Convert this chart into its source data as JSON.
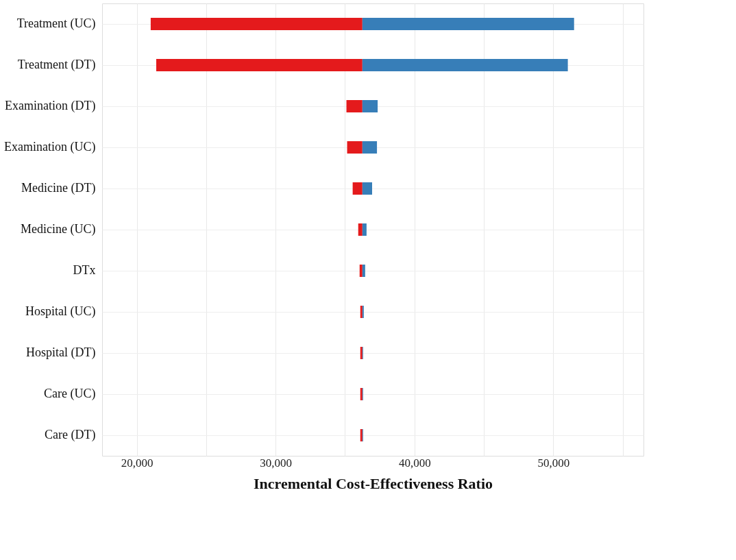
{
  "chart_data": {
    "type": "bar",
    "orientation": "horizontal",
    "xlabel": "Incremental Cost-Effectiveness Ratio",
    "categories": [
      "Treatment (UC)",
      "Treatment (DT)",
      "Examination (DT)",
      "Examination (UC)",
      "Medicine (DT)",
      "Medicine (UC)",
      "DTx",
      "Hospital (UC)",
      "Hospital (DT)",
      "Care (UC)",
      "Care (DT)"
    ],
    "series": [
      {
        "color": "#e41a1c",
        "base": [
          21000,
          21400,
          35100,
          35150,
          35550,
          35950,
          36050,
          36100,
          36100,
          36100,
          36100
        ],
        "values": [
          15250,
          14850,
          1150,
          1100,
          700,
          300,
          200,
          150,
          150,
          150,
          150
        ]
      },
      {
        "color": "#377eb8",
        "base": [
          36250,
          36250,
          36250,
          36250,
          36250,
          36250,
          36250,
          36250,
          36250,
          36250,
          36250
        ],
        "values": [
          15250,
          14800,
          1100,
          1050,
          700,
          300,
          200,
          100,
          50,
          50,
          50
        ]
      }
    ],
    "xlim": [
      17500,
      56500
    ],
    "xticks": [
      {
        "value": 20000,
        "label": "20,000"
      },
      {
        "value": 25000,
        "label": null
      },
      {
        "value": 30000,
        "label": "30,000"
      },
      {
        "value": 35000,
        "label": null
      },
      {
        "value": 40000,
        "label": "40,000"
      },
      {
        "value": 45000,
        "label": null
      },
      {
        "value": 50000,
        "label": "50,000"
      },
      {
        "value": 55000,
        "label": null
      }
    ],
    "grid": true
  }
}
